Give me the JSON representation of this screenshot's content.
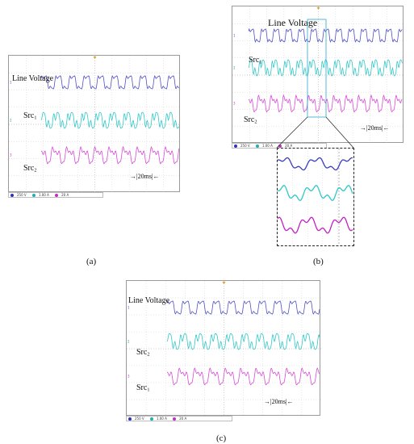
{
  "panel_a": {
    "caption": "(a)",
    "labels": {
      "line_voltage": "Line Voltage",
      "src1": "Src",
      "src1_sub": "1",
      "src2": "Src",
      "src2_sub": "2"
    },
    "time_scale": "20ms",
    "status": [
      "250 V",
      "1.00 A",
      "20 A"
    ]
  },
  "panel_b": {
    "caption": "(b)",
    "labels": {
      "line_voltage": "Line Voltage",
      "src1": "Src",
      "src1_sub": "1",
      "src2": "Src",
      "src2_sub": "2"
    },
    "time_scale": "20ms",
    "status": [
      "250 V",
      "1.00 A",
      "20 A"
    ]
  },
  "panel_c": {
    "caption": "(c)",
    "labels": {
      "line_voltage": "Line Voltage",
      "src1": "Src",
      "src1_sub": "2",
      "src2": "Src",
      "src2_sub": "1"
    },
    "time_scale": "20ms",
    "status": [
      "250 V",
      "1.00 A",
      "20 A"
    ]
  },
  "colors": {
    "line_voltage": "#5050c8",
    "src1": "#2ec8c8",
    "src2": "#d84ad8",
    "grid": "#bdbdbd"
  }
}
